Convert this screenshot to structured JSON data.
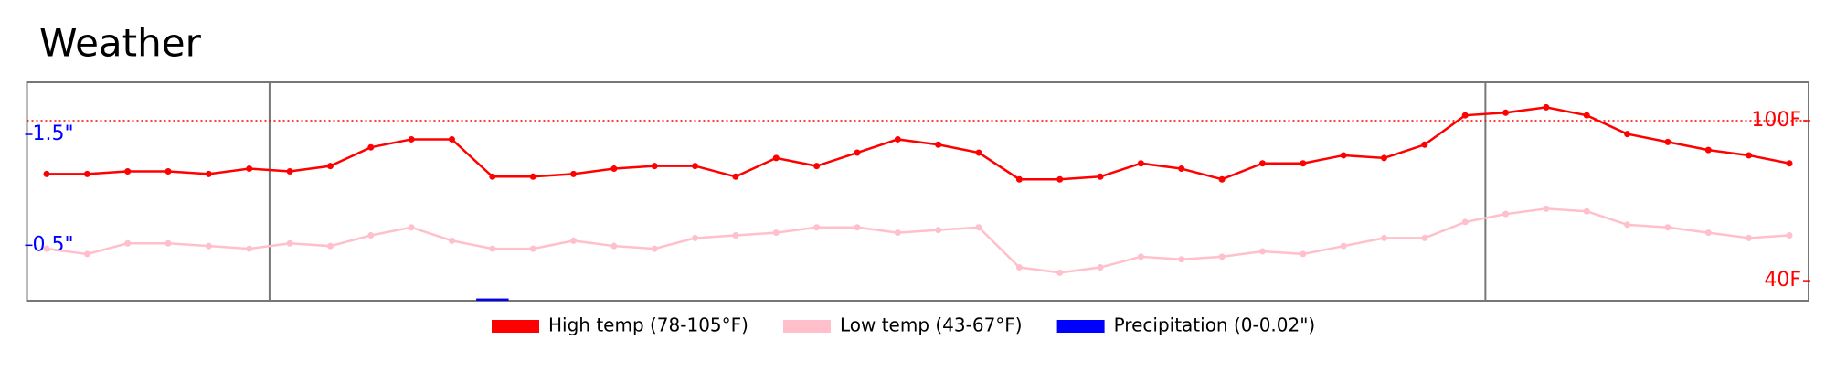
{
  "chart_data": {
    "type": "line",
    "title": "Weather",
    "series": [
      {
        "name": "High temp (78-105°F)",
        "color": "red",
        "values": [
          80,
          80,
          81,
          81,
          80,
          82,
          81,
          83,
          90,
          93,
          93,
          79,
          79,
          80,
          82,
          83,
          83,
          79,
          86,
          83,
          88,
          93,
          91,
          88,
          78,
          78,
          79,
          84,
          82,
          78,
          84,
          84,
          87,
          86,
          91,
          102,
          103,
          105,
          102,
          95,
          92,
          89,
          87,
          84
        ]
      },
      {
        "name": "Low temp (43-67°F)",
        "color": "pink",
        "values": [
          52,
          50,
          54,
          54,
          53,
          52,
          54,
          53,
          57,
          60,
          55,
          52,
          52,
          55,
          53,
          52,
          56,
          57,
          58,
          60,
          60,
          58,
          59,
          60,
          45,
          43,
          45,
          49,
          48,
          49,
          51,
          50,
          53,
          56,
          56,
          62,
          65,
          67,
          66,
          61,
          60,
          58,
          56,
          57
        ]
      },
      {
        "name": "Precipitation (0-0.02\")",
        "color": "blue",
        "axis": "y2",
        "values": [
          0,
          0,
          0,
          0,
          0,
          0,
          0,
          0,
          0,
          0,
          0,
          0.02,
          0,
          0,
          0,
          0,
          0,
          0,
          0,
          0,
          0,
          0,
          0,
          0,
          0,
          0,
          0,
          0,
          0,
          0,
          0,
          0,
          0,
          0,
          0,
          0,
          0,
          0,
          0,
          0,
          0,
          0,
          0,
          0
        ]
      }
    ],
    "ylim": [
      32.5,
      114.4
    ],
    "yticks": [
      {
        "value": 40,
        "label": "40F"
      },
      {
        "value": 100,
        "label": "100F"
      }
    ],
    "y2lim": [
      0,
      1.97
    ],
    "y2ticks": [
      {
        "value": 0.5,
        "label": "0.5\""
      },
      {
        "value": 1.5,
        "label": "1.5\""
      }
    ],
    "reference_line": 100,
    "legend": "bottom"
  }
}
